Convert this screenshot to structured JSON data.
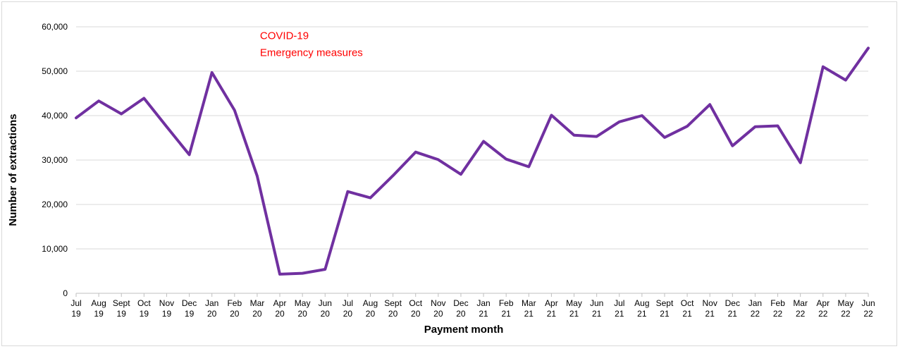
{
  "chart_data": {
    "type": "line",
    "xlabel": "Payment month",
    "ylabel": "Number of extractions",
    "ylim": [
      0,
      60000
    ],
    "yticks": [
      0,
      10000,
      20000,
      30000,
      40000,
      50000,
      60000
    ],
    "ytick_labels": [
      "0",
      "10,000",
      "20,000",
      "30,000",
      "40,000",
      "50,000",
      "60,000"
    ],
    "grid": true,
    "categories": [
      [
        "Jul",
        "19"
      ],
      [
        "Aug",
        "19"
      ],
      [
        "Sept",
        "19"
      ],
      [
        "Oct",
        "19"
      ],
      [
        "Nov",
        "19"
      ],
      [
        "Dec",
        "19"
      ],
      [
        "Jan",
        "20"
      ],
      [
        "Feb",
        "20"
      ],
      [
        "Mar",
        "20"
      ],
      [
        "Apr",
        "20"
      ],
      [
        "May",
        "20"
      ],
      [
        "Jun",
        "20"
      ],
      [
        "Jul",
        "20"
      ],
      [
        "Aug",
        "20"
      ],
      [
        "Sept",
        "20"
      ],
      [
        "Oct",
        "20"
      ],
      [
        "Nov",
        "20"
      ],
      [
        "Dec",
        "20"
      ],
      [
        "Jan",
        "21"
      ],
      [
        "Feb",
        "21"
      ],
      [
        "Mar",
        "21"
      ],
      [
        "Apr",
        "21"
      ],
      [
        "May",
        "21"
      ],
      [
        "Jun",
        "21"
      ],
      [
        "Jul",
        "21"
      ],
      [
        "Aug",
        "21"
      ],
      [
        "Sept",
        "21"
      ],
      [
        "Oct",
        "21"
      ],
      [
        "Nov",
        "21"
      ],
      [
        "Dec",
        "21"
      ],
      [
        "Jan",
        "22"
      ],
      [
        "Feb",
        "22"
      ],
      [
        "Mar",
        "22"
      ],
      [
        "Apr",
        "22"
      ],
      [
        "May",
        "22"
      ],
      [
        "Jun",
        "22"
      ]
    ],
    "series": [
      {
        "color": "#7030a0",
        "values": [
          39500,
          43300,
          40400,
          43900,
          37500,
          31200,
          49700,
          41200,
          26400,
          4300,
          4500,
          5400,
          22900,
          21500,
          26500,
          31800,
          30100,
          26800,
          34200,
          30200,
          28500,
          40100,
          35600,
          35300,
          38600,
          40000,
          35100,
          37600,
          42500,
          33200,
          37500,
          37700,
          29400,
          51000,
          48000,
          55200
        ]
      }
    ],
    "annotation": {
      "lines": [
        "COVID-19",
        "Emergency measures"
      ],
      "color": "#ff0000",
      "anchor_index": 8,
      "anchor_value": 59000
    }
  }
}
